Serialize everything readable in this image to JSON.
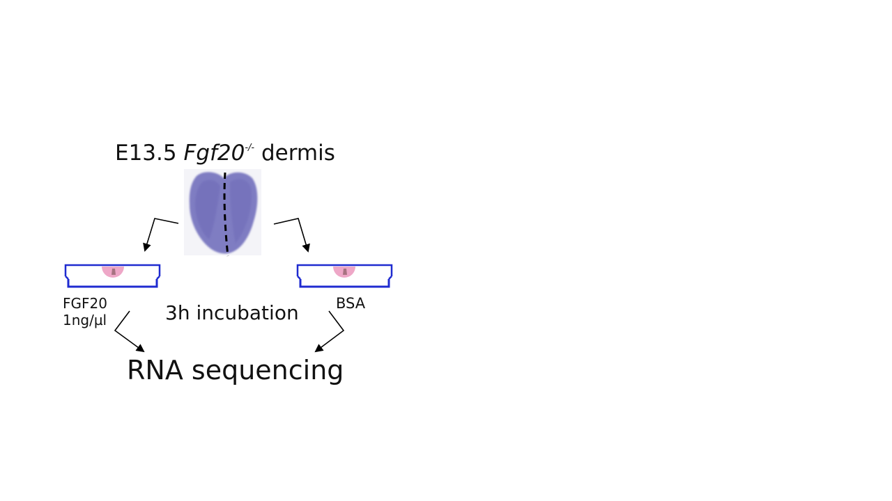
{
  "title": {
    "prefix": "E13.5",
    "gene": "Fgf20",
    "genotype": "-/-",
    "suffix": "dermis"
  },
  "left_condition": {
    "line1": "FGF20",
    "line2": "1ng/µl"
  },
  "right_condition": {
    "label": "BSA"
  },
  "incubation_label": "3h incubation",
  "output_label": "RNA sequencing",
  "colors": {
    "dish": "#1f2bd0",
    "tissue": "#7a78c0",
    "explant": "#e88ab4",
    "arrow": "#000000"
  }
}
